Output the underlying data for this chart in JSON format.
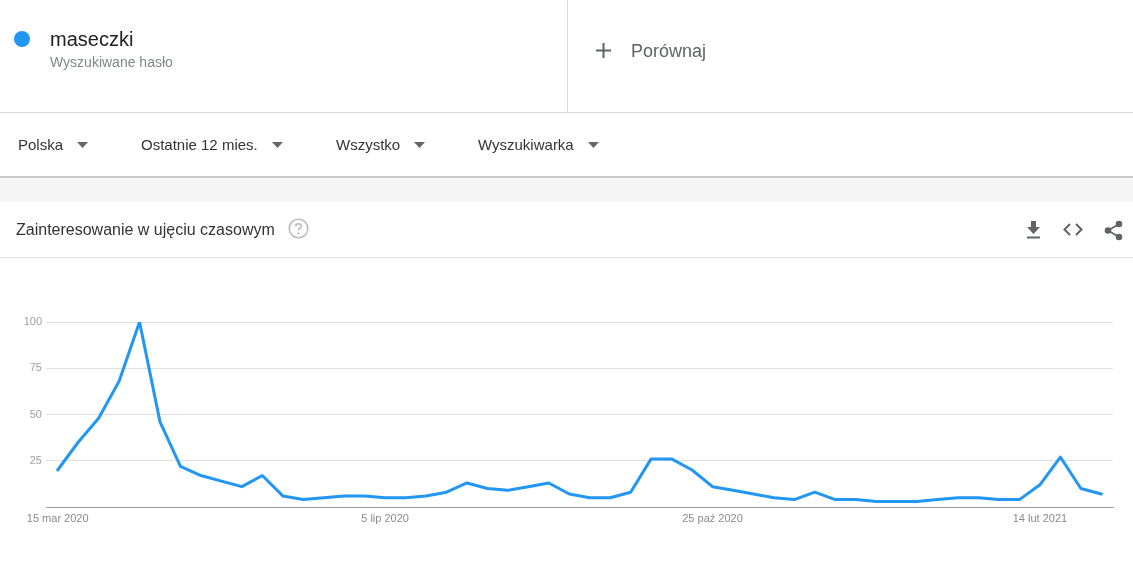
{
  "chart_data": {
    "type": "line",
    "title": "Zainteresowanie w ujęciu czasowym",
    "x": [
      "2020-03-15",
      "2020-03-22",
      "2020-03-29",
      "2020-04-05",
      "2020-04-12",
      "2020-04-19",
      "2020-04-26",
      "2020-05-03",
      "2020-05-10",
      "2020-05-17",
      "2020-05-24",
      "2020-05-31",
      "2020-06-07",
      "2020-06-14",
      "2020-06-21",
      "2020-06-28",
      "2020-07-05",
      "2020-07-12",
      "2020-07-19",
      "2020-07-26",
      "2020-08-02",
      "2020-08-09",
      "2020-08-16",
      "2020-08-23",
      "2020-08-30",
      "2020-09-06",
      "2020-09-13",
      "2020-09-20",
      "2020-09-27",
      "2020-10-04",
      "2020-10-11",
      "2020-10-18",
      "2020-10-25",
      "2020-11-01",
      "2020-11-08",
      "2020-11-15",
      "2020-11-22",
      "2020-11-29",
      "2020-12-06",
      "2020-12-13",
      "2020-12-20",
      "2020-12-27",
      "2021-01-03",
      "2021-01-10",
      "2021-01-17",
      "2021-01-24",
      "2021-01-31",
      "2021-02-07",
      "2021-02-14",
      "2021-02-21",
      "2021-02-28",
      "2021-03-07"
    ],
    "series": [
      {
        "name": "maseczki",
        "color": "#2196f3",
        "values": [
          20,
          35,
          48,
          68,
          100,
          46,
          22,
          17,
          14,
          11,
          17,
          6,
          4,
          5,
          6,
          6,
          5,
          5,
          6,
          8,
          13,
          10,
          9,
          11,
          13,
          7,
          5,
          5,
          8,
          26,
          26,
          20,
          11,
          9,
          7,
          5,
          4,
          8,
          4,
          4,
          3,
          3,
          3,
          4,
          5,
          5,
          4,
          4,
          12,
          27,
          10,
          7
        ]
      }
    ],
    "xlim": [
      "2020-03-11",
      "2021-03-11"
    ],
    "xticks": [
      {
        "value": "2020-03-15",
        "label": "15 mar 2020"
      },
      {
        "value": "2020-07-05",
        "label": "5 lip 2020"
      },
      {
        "value": "2020-10-25",
        "label": "25 paź 2020"
      },
      {
        "value": "2021-02-14",
        "label": "14 lut 2021"
      }
    ],
    "ylim": [
      0,
      100
    ],
    "yticks": [
      25,
      50,
      75,
      100
    ],
    "grid": "y",
    "legend": "top left",
    "annotations": [
      "Wyszukiwane hasło",
      "Porównaj",
      "Polska",
      "Ostatnie 12 mies.",
      "Wszystko",
      "Wyszukiwarka"
    ]
  }
}
